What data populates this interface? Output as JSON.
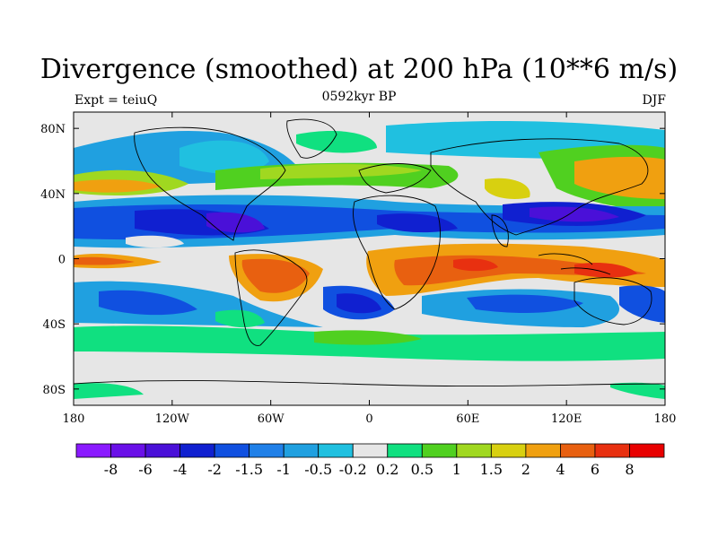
{
  "title": "Divergence (smoothed) at 200 hPa (10**6 m/s)",
  "subtitle_left": "Expt = teiuQ",
  "subtitle_center": "0592kyr BP",
  "subtitle_right": "DJF",
  "x_ticks": [
    {
      "value": -180,
      "label": "180"
    },
    {
      "value": -120,
      "label": "120W"
    },
    {
      "value": -60,
      "label": "60W"
    },
    {
      "value": 0,
      "label": "0"
    },
    {
      "value": 60,
      "label": "60E"
    },
    {
      "value": 120,
      "label": "120E"
    },
    {
      "value": 180,
      "label": "180"
    }
  ],
  "y_ticks": [
    {
      "value": 80,
      "label": "80N"
    },
    {
      "value": 40,
      "label": "40N"
    },
    {
      "value": 0,
      "label": "0"
    },
    {
      "value": -40,
      "label": "40S"
    },
    {
      "value": -80,
      "label": "80S"
    }
  ],
  "lon_range": [
    -180,
    180
  ],
  "lat_range": [
    -90,
    90
  ],
  "colorbar": {
    "colors": [
      "#8a1aff",
      "#6a10e8",
      "#4a10d8",
      "#1020d0",
      "#1050e0",
      "#2080e8",
      "#20a0e0",
      "#20c0e0",
      "#e6e6e6",
      "#10e080",
      "#50d020",
      "#a0d820",
      "#d8d010",
      "#f0a010",
      "#e86010",
      "#e83010",
      "#e80000"
    ],
    "labels": [
      "-8",
      "-6",
      "-4",
      "-2",
      "-1.5",
      "-1",
      "-0.5",
      "-0.2",
      "0.2",
      "0.5",
      "1",
      "1.5",
      "2",
      "4",
      "6",
      "8"
    ]
  },
  "field_features": [
    {
      "lon": -140,
      "lat": 24,
      "value": -2.5
    },
    {
      "lon": -90,
      "lat": 22,
      "value": -4.5
    },
    {
      "lon": -20,
      "lat": 22,
      "value": -2.5
    },
    {
      "lon": 40,
      "lat": 18,
      "value": -3
    },
    {
      "lon": 120,
      "lat": 22,
      "value": -5
    },
    {
      "lon": 170,
      "lat": 25,
      "value": -2
    },
    {
      "lon": -70,
      "lat": -15,
      "value": 5
    },
    {
      "lon": 20,
      "lat": -12,
      "value": 5
    },
    {
      "lon": 70,
      "lat": -3,
      "value": 6
    },
    {
      "lon": 140,
      "lat": -12,
      "value": 6
    },
    {
      "lon": -170,
      "lat": -8,
      "value": 4
    },
    {
      "lon": 150,
      "lat": 45,
      "value": 2.5
    },
    {
      "lon": -170,
      "lat": 45,
      "value": 2
    },
    {
      "lon": -90,
      "lat": -38,
      "value": -1.5
    },
    {
      "lon": -10,
      "lat": -35,
      "value": -3
    },
    {
      "lon": 80,
      "lat": -35,
      "value": -2.5
    },
    {
      "lon": 0,
      "lat": -55,
      "value": 1
    }
  ]
}
